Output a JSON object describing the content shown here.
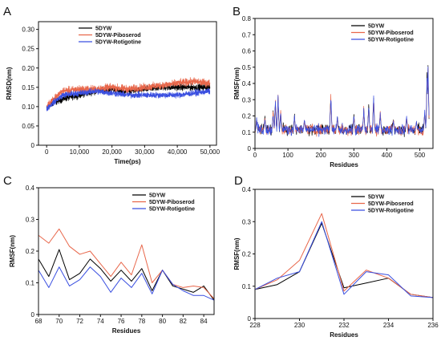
{
  "colors": {
    "ref": "#000000",
    "pib": "#e8674b",
    "rot": "#3a4fe0"
  },
  "chart_data": [
    {
      "id": "A",
      "type": "line",
      "panel_label": "A",
      "xlabel": "Time(ps)",
      "ylabel": "RMSD(nm)",
      "xlim": [
        -2500,
        52000
      ],
      "ylim": [
        0,
        0.32
      ],
      "xticks": [
        0,
        10000,
        20000,
        30000,
        40000,
        50000
      ],
      "xtick_labels": [
        "0",
        "10,000",
        "20,000",
        "30,000",
        "40,000",
        "50,000"
      ],
      "yticks": [
        0,
        0.05,
        0.1,
        0.15,
        0.2,
        0.25,
        0.3
      ],
      "ytick_labels": [
        "0",
        "0.05",
        "0.10",
        "0.15",
        "0.20",
        "0.25",
        "0.30"
      ],
      "legend": [
        "5DYW",
        "5DYW-Piboserod",
        "5DYW-Rotigotine"
      ],
      "legend_position": "top-left",
      "x_range": [
        0,
        50000
      ],
      "series": [
        {
          "name": "5DYW",
          "color": "ref",
          "trend": [
            [
              0,
              0.095
            ],
            [
              2000,
              0.11
            ],
            [
              5000,
              0.12
            ],
            [
              10000,
              0.13
            ],
            [
              15000,
              0.14
            ],
            [
              20000,
              0.145
            ],
            [
              25000,
              0.14
            ],
            [
              30000,
              0.145
            ],
            [
              35000,
              0.15
            ],
            [
              40000,
              0.15
            ],
            [
              45000,
              0.15
            ],
            [
              50000,
              0.15
            ]
          ],
          "noise": 0.012
        },
        {
          "name": "5DYW-Piboserod",
          "color": "pib",
          "trend": [
            [
              0,
              0.1
            ],
            [
              2000,
              0.12
            ],
            [
              5000,
              0.14
            ],
            [
              10000,
              0.145
            ],
            [
              15000,
              0.145
            ],
            [
              20000,
              0.15
            ],
            [
              25000,
              0.145
            ],
            [
              30000,
              0.15
            ],
            [
              35000,
              0.155
            ],
            [
              40000,
              0.16
            ],
            [
              45000,
              0.165
            ],
            [
              50000,
              0.16
            ]
          ],
          "noise": 0.014
        },
        {
          "name": "5DYW-Rotigotine",
          "color": "rot",
          "trend": [
            [
              0,
              0.095
            ],
            [
              2000,
              0.11
            ],
            [
              5000,
              0.13
            ],
            [
              10000,
              0.135
            ],
            [
              15000,
              0.14
            ],
            [
              20000,
              0.135
            ],
            [
              25000,
              0.13
            ],
            [
              30000,
              0.13
            ],
            [
              35000,
              0.13
            ],
            [
              40000,
              0.13
            ],
            [
              45000,
              0.135
            ],
            [
              50000,
              0.14
            ]
          ],
          "noise": 0.011
        }
      ]
    },
    {
      "id": "B",
      "type": "line",
      "panel_label": "B",
      "xlabel": "Residues",
      "ylabel": "RMSF(nm)",
      "xlim": [
        0,
        540
      ],
      "ylim": [
        0,
        0.8
      ],
      "xticks": [
        0,
        100,
        200,
        300,
        400,
        500
      ],
      "xtick_labels": [
        "0",
        "100",
        "200",
        "300",
        "400",
        "500"
      ],
      "yticks": [
        0,
        0.1,
        0.2,
        0.3,
        0.4,
        0.5,
        0.6,
        0.7,
        0.8
      ],
      "ytick_labels": [
        "0",
        "0.1",
        "0.2",
        "0.3",
        "0.4",
        "0.5",
        "0.6",
        "0.7",
        "0.8"
      ],
      "legend": [
        "5DYW",
        "5DYW-Piboserod",
        "5DYW-Rotigotine"
      ],
      "legend_position": "top-right",
      "x_range": [
        1,
        528
      ],
      "baseline": 0.1,
      "noise": 0.05,
      "peaks": [
        [
          5,
          0.18
        ],
        [
          30,
          0.19
        ],
        [
          55,
          0.22
        ],
        [
          62,
          0.28
        ],
        [
          70,
          0.3
        ],
        [
          78,
          0.22
        ],
        [
          120,
          0.2
        ],
        [
          150,
          0.18
        ],
        [
          230,
          0.32
        ],
        [
          250,
          0.19
        ],
        [
          300,
          0.2
        ],
        [
          330,
          0.24
        ],
        [
          345,
          0.26
        ],
        [
          360,
          0.31
        ],
        [
          380,
          0.22
        ],
        [
          420,
          0.18
        ],
        [
          460,
          0.2
        ],
        [
          490,
          0.17
        ],
        [
          515,
          0.22
        ],
        [
          522,
          0.42
        ],
        [
          525,
          0.5
        ]
      ],
      "series": [
        {
          "name": "5DYW",
          "color": "ref"
        },
        {
          "name": "5DYW-Piboserod",
          "color": "pib"
        },
        {
          "name": "5DYW-Rotigotine",
          "color": "rot"
        }
      ]
    },
    {
      "id": "C",
      "type": "line",
      "panel_label": "C",
      "xlabel": "Residues",
      "ylabel": "RMSF(nm)",
      "xlim": [
        68,
        85
      ],
      "ylim": [
        0,
        0.4
      ],
      "xticks": [
        68,
        70,
        72,
        74,
        76,
        78,
        80,
        82,
        84
      ],
      "xtick_labels": [
        "68",
        "70",
        "72",
        "74",
        "76",
        "78",
        "80",
        "82",
        "84"
      ],
      "yticks": [
        0,
        0.1,
        0.2,
        0.3,
        0.4
      ],
      "ytick_labels": [
        "0",
        "0.1",
        "0.2",
        "0.3",
        "0.4"
      ],
      "legend": [
        "5DYW",
        "5DYW-Piboserod",
        "5DYW-Rotigotine"
      ],
      "legend_position": "top-right",
      "x": [
        68,
        69,
        70,
        71,
        72,
        73,
        74,
        75,
        76,
        77,
        78,
        79,
        80,
        81,
        82,
        83,
        84,
        85
      ],
      "series": [
        {
          "name": "5DYW",
          "color": "ref",
          "values": [
            0.175,
            0.12,
            0.205,
            0.11,
            0.13,
            0.175,
            0.145,
            0.105,
            0.14,
            0.105,
            0.145,
            0.075,
            0.14,
            0.09,
            0.08,
            0.07,
            0.09,
            0.045
          ]
        },
        {
          "name": "5DYW-Piboserod",
          "color": "pib",
          "values": [
            0.25,
            0.225,
            0.27,
            0.215,
            0.19,
            0.2,
            0.16,
            0.12,
            0.165,
            0.125,
            0.22,
            0.1,
            0.14,
            0.095,
            0.085,
            0.09,
            0.085,
            0.05
          ]
        },
        {
          "name": "5DYW-Rotigotine",
          "color": "rot",
          "values": [
            0.14,
            0.085,
            0.15,
            0.09,
            0.11,
            0.15,
            0.12,
            0.07,
            0.115,
            0.085,
            0.13,
            0.065,
            0.14,
            0.095,
            0.075,
            0.06,
            0.06,
            0.045
          ]
        }
      ]
    },
    {
      "id": "D",
      "type": "line",
      "panel_label": "D",
      "xlabel": "Residues",
      "ylabel": "RMSF(nm)",
      "xlim": [
        228,
        236
      ],
      "ylim": [
        0,
        0.4
      ],
      "xticks": [
        228,
        230,
        232,
        234,
        236
      ],
      "xtick_labels": [
        "228",
        "230",
        "232",
        "234",
        "236"
      ],
      "yticks": [
        0,
        0.1,
        0.2,
        0.3,
        0.4
      ],
      "ytick_labels": [
        "0",
        "0.1",
        "0.2",
        "0.3",
        "0.4"
      ],
      "legend": [
        "5DYW",
        "5DYW-Piboserod",
        "5DYW-Rotigotine"
      ],
      "legend_position": "top-right",
      "x": [
        228,
        229,
        230,
        231,
        232,
        233,
        234,
        235,
        236
      ],
      "series": [
        {
          "name": "5DYW",
          "color": "ref",
          "values": [
            0.09,
            0.105,
            0.145,
            0.295,
            0.095,
            0.11,
            0.125,
            0.075,
            0.065
          ]
        },
        {
          "name": "5DYW-Piboserod",
          "color": "pib",
          "values": [
            0.09,
            0.12,
            0.18,
            0.325,
            0.085,
            0.15,
            0.125,
            0.075,
            0.065
          ]
        },
        {
          "name": "5DYW-Rotigotine",
          "color": "rot",
          "values": [
            0.09,
            0.125,
            0.145,
            0.3,
            0.075,
            0.145,
            0.135,
            0.07,
            0.065
          ]
        }
      ]
    }
  ]
}
